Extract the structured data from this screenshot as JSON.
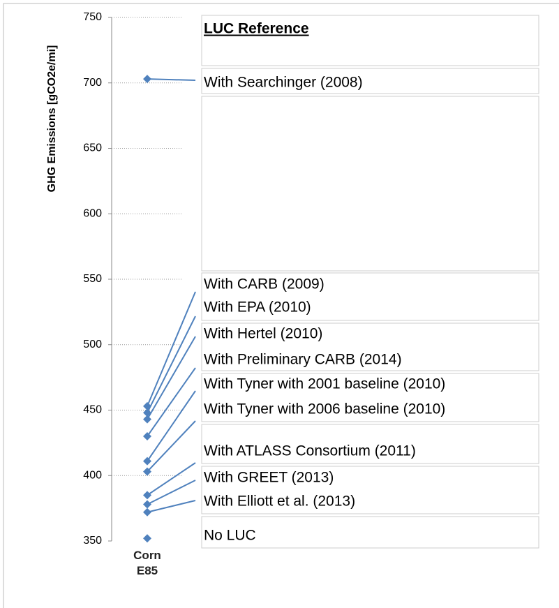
{
  "chart_data": {
    "type": "scatter",
    "ylabel": "GHG Emissions [gCO2e/mi]",
    "categories": [
      "Corn E85"
    ],
    "ylim": [
      350,
      750
    ],
    "yticks": [
      350,
      400,
      450,
      500,
      550,
      600,
      650,
      700,
      750
    ],
    "grid": true,
    "color": "#4f81bd",
    "legend_title": "LUC Reference",
    "series": [
      {
        "name": "With Searchinger (2008)",
        "values": [
          703
        ]
      },
      {
        "name": "With CARB (2009)",
        "values": [
          453
        ]
      },
      {
        "name": "With EPA (2010)",
        "values": [
          448
        ]
      },
      {
        "name": "With Hertel (2010)",
        "values": [
          443
        ]
      },
      {
        "name": "With Preliminary CARB (2014)",
        "values": [
          430
        ]
      },
      {
        "name": "With Tyner with 2001 baseline (2010)",
        "values": [
          411
        ]
      },
      {
        "name": "With Tyner with 2006 baseline (2010)",
        "values": [
          403
        ]
      },
      {
        "name": "With ATLASS Consortium (2011)",
        "values": [
          385
        ]
      },
      {
        "name": "With GREET (2013)",
        "values": [
          378
        ]
      },
      {
        "name": "With Elliott et al. (2013)",
        "values": [
          372
        ]
      },
      {
        "name": "No LUC",
        "values": [
          352
        ]
      }
    ]
  }
}
